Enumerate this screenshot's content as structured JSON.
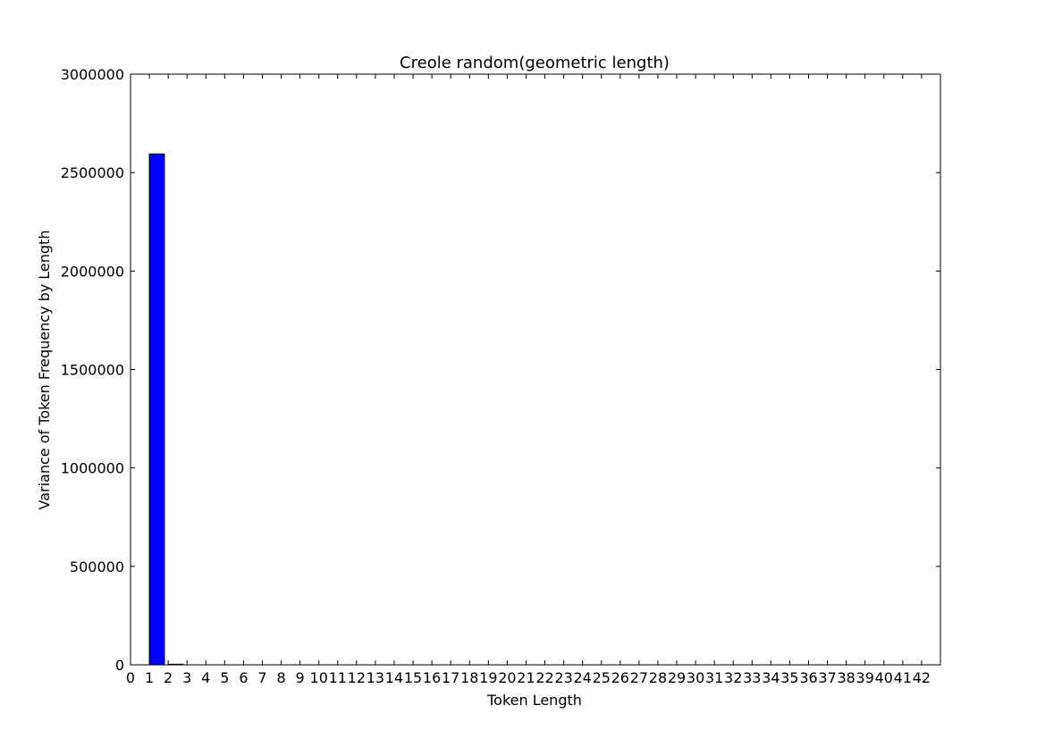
{
  "chart_data": {
    "type": "bar",
    "title": "Creole random(geometric length)",
    "xlabel": "Token Length",
    "ylabel": "Variance of Token Frequency by Length",
    "xlim": [
      0,
      43
    ],
    "ylim": [
      0,
      3000000
    ],
    "xticks": [
      0,
      1,
      2,
      3,
      4,
      5,
      6,
      7,
      8,
      9,
      10,
      11,
      12,
      13,
      14,
      15,
      16,
      17,
      18,
      19,
      20,
      21,
      22,
      23,
      24,
      25,
      26,
      27,
      28,
      29,
      30,
      31,
      32,
      33,
      34,
      35,
      36,
      37,
      38,
      39,
      40,
      41,
      42
    ],
    "xtick_labels": [
      "0",
      "1",
      "2",
      "3",
      "4",
      "5",
      "6",
      "7",
      "8",
      "9",
      "10",
      "11",
      "12",
      "13",
      "14",
      "15",
      "16",
      "17",
      "18",
      "19",
      "20",
      "21",
      "22",
      "23",
      "24",
      "25",
      "26",
      "27",
      "28",
      "29",
      "30",
      "31",
      "32",
      "33",
      "34",
      "35",
      "36",
      "37",
      "38",
      "39",
      "40",
      "41",
      "42"
    ],
    "yticks": [
      0,
      500000,
      1000000,
      1500000,
      2000000,
      2500000,
      3000000
    ],
    "ytick_labels": [
      "0",
      "500000",
      "1000000",
      "1500000",
      "2000000",
      "2500000",
      "3000000"
    ],
    "bar_width": 0.8,
    "bar_color": "#0000ff",
    "x": [
      1,
      2
    ],
    "values": [
      2595000,
      3000
    ],
    "grid": false
  }
}
